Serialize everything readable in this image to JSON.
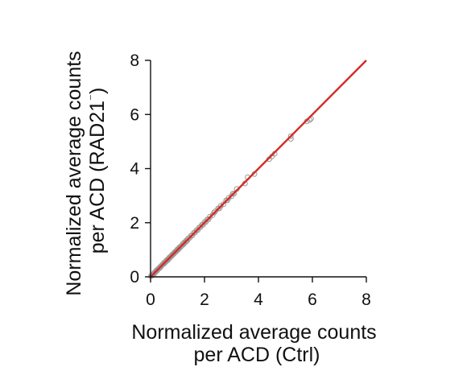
{
  "chart_data": {
    "type": "scatter",
    "title": "",
    "xlabel_lines": [
      "Normalized average counts",
      "per ACD (Ctrl)"
    ],
    "ylabel_lines": [
      "Normalized average counts",
      "per ACD (RAD21",
      "⁻",
      ")"
    ],
    "xlim": [
      0,
      8
    ],
    "ylim": [
      0,
      8
    ],
    "xticks": [
      0,
      2,
      4,
      6,
      8
    ],
    "yticks": [
      0,
      2,
      4,
      6,
      8
    ],
    "xtick_labels": [
      "0",
      "2",
      "4",
      "6",
      "8"
    ],
    "ytick_labels": [
      "0",
      "2",
      "4",
      "6",
      "8"
    ],
    "grid": false,
    "legend": "none",
    "point_style": "open-circle",
    "point_color": "#9a9a9a",
    "fit_line": {
      "from": [
        0,
        0
      ],
      "to": [
        8,
        8
      ],
      "color": "#d42a26"
    },
    "series": [
      {
        "x": [
          0.02,
          0.04,
          0.06,
          0.08,
          0.1,
          0.12,
          0.15,
          0.18,
          0.2,
          0.22,
          0.25,
          0.28,
          0.3,
          0.33,
          0.35,
          0.38,
          0.4,
          0.43,
          0.45,
          0.48,
          0.5,
          0.53,
          0.55,
          0.58,
          0.6,
          0.63,
          0.65,
          0.68,
          0.7,
          0.73,
          0.75,
          0.78,
          0.8,
          0.83,
          0.85,
          0.88,
          0.9,
          0.93,
          0.95,
          0.98,
          1.0,
          1.03,
          1.06,
          1.1,
          1.12,
          1.15,
          1.2,
          1.22,
          1.25,
          1.3,
          1.33,
          1.36,
          1.4,
          1.45,
          1.5,
          1.55,
          1.6,
          1.65,
          1.7,
          1.75,
          1.8,
          1.85,
          1.9,
          1.95,
          2.0,
          2.05,
          2.1,
          2.15,
          2.2,
          2.3,
          2.35,
          2.4,
          2.5,
          2.55,
          2.6,
          2.7,
          2.8,
          2.85,
          2.9,
          3.0,
          3.05,
          3.1,
          3.2,
          3.5,
          3.6,
          3.85,
          4.4,
          4.5,
          4.6,
          5.2,
          5.2,
          5.8,
          5.9,
          5.95
        ],
        "y": [
          0.03,
          0.05,
          0.05,
          0.09,
          0.11,
          0.1,
          0.16,
          0.17,
          0.21,
          0.24,
          0.24,
          0.29,
          0.31,
          0.32,
          0.36,
          0.37,
          0.41,
          0.44,
          0.46,
          0.47,
          0.52,
          0.52,
          0.56,
          0.57,
          0.62,
          0.61,
          0.66,
          0.67,
          0.72,
          0.72,
          0.76,
          0.77,
          0.82,
          0.82,
          0.86,
          0.87,
          0.92,
          0.92,
          0.96,
          0.97,
          1.02,
          1.01,
          1.08,
          1.09,
          1.13,
          1.14,
          1.22,
          1.2,
          1.27,
          1.28,
          1.35,
          1.34,
          1.42,
          1.44,
          1.52,
          1.53,
          1.62,
          1.64,
          1.72,
          1.73,
          1.82,
          1.84,
          1.92,
          1.93,
          2.02,
          2.03,
          2.12,
          2.13,
          2.22,
          2.28,
          2.37,
          2.42,
          2.52,
          2.53,
          2.62,
          2.68,
          2.82,
          2.83,
          2.92,
          2.98,
          3.07,
          3.08,
          3.25,
          3.45,
          3.68,
          3.8,
          4.35,
          4.45,
          4.55,
          5.1,
          5.2,
          5.75,
          5.8,
          5.85
        ]
      }
    ]
  }
}
